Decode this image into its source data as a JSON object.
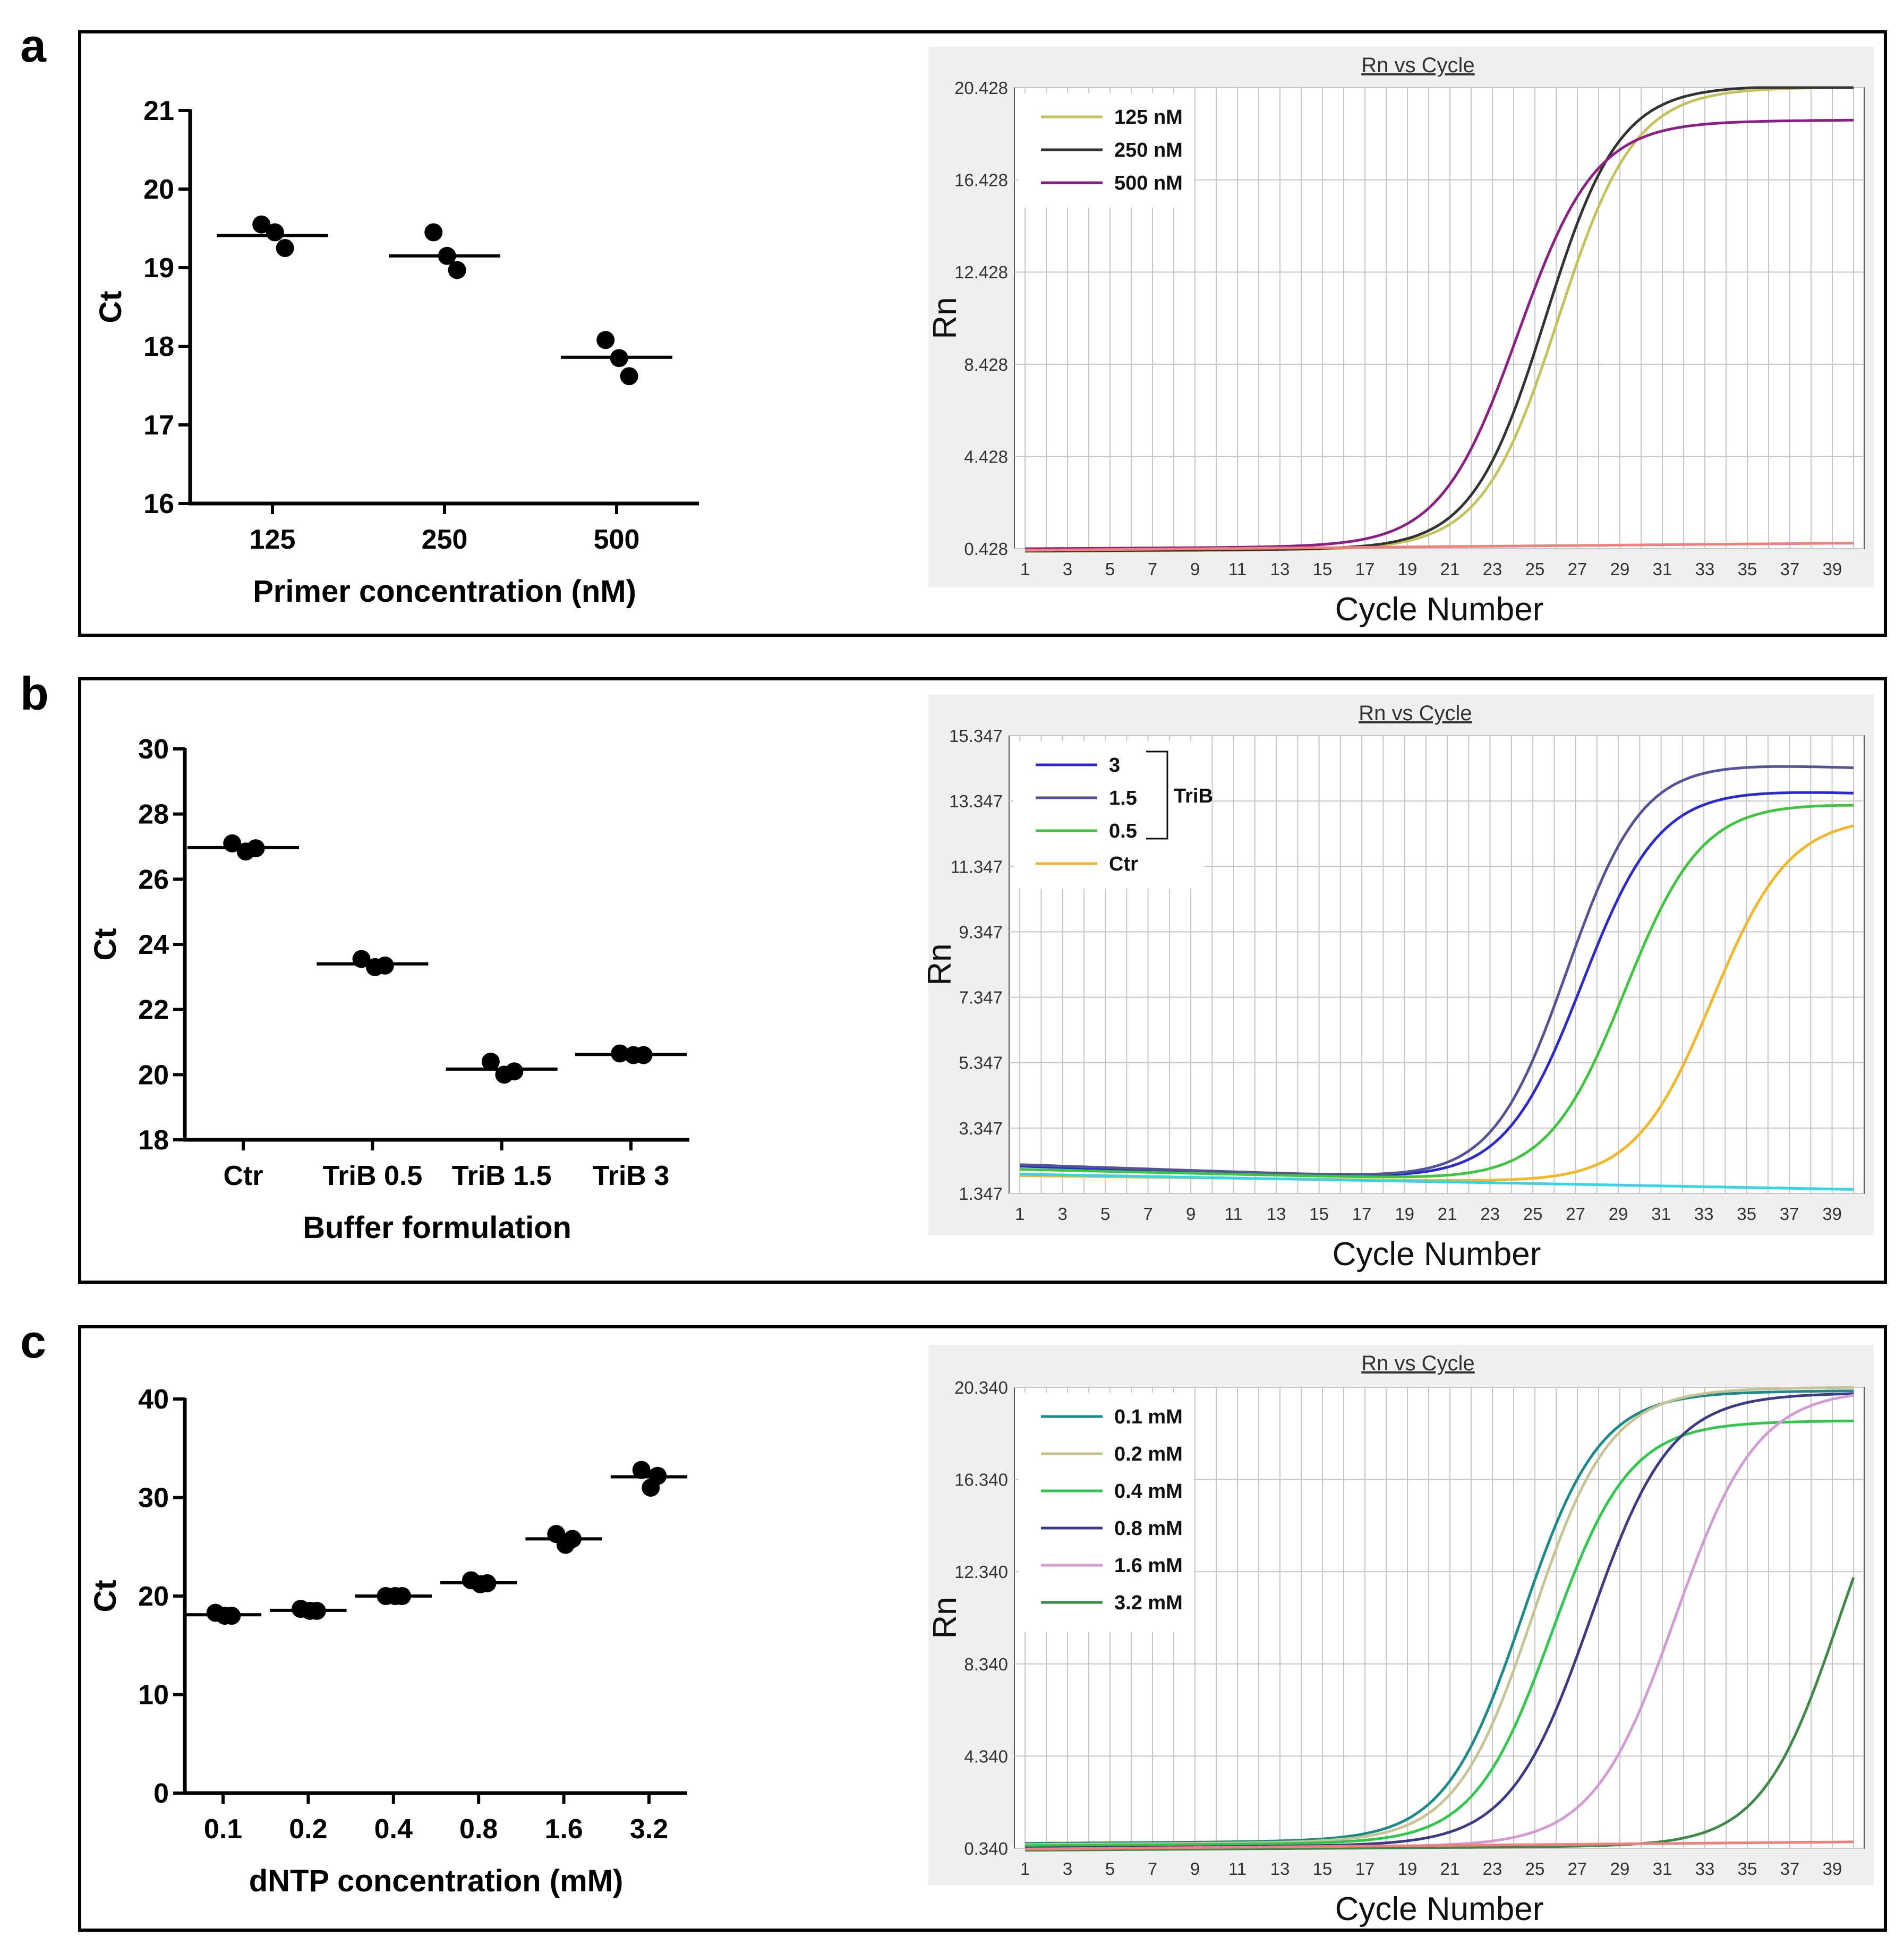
{
  "figure": {
    "panels": [
      {
        "letter": "a"
      },
      {
        "letter": "b"
      },
      {
        "letter": "c"
      }
    ]
  },
  "colors": {
    "frame": "#000000",
    "plotBg": "#ffffff",
    "chartBg": "#f0f0f0",
    "grid": "#c6c6c6",
    "pinkBaseline": "#f08080",
    "cyanBaseline": "#33d6e6"
  },
  "chart_data": [
    {
      "id": "a-scatter",
      "type": "scatter",
      "panel": "a",
      "title": "",
      "xlabel": "Primer concentration (nM)",
      "ylabel": "Ct",
      "categories": [
        "125",
        "250",
        "500"
      ],
      "ylim": [
        16,
        21
      ],
      "yticks": [
        16,
        17,
        18,
        19,
        20,
        21
      ],
      "points": [
        [
          19.55,
          19.45,
          19.25
        ],
        [
          19.45,
          19.15,
          18.97
        ],
        [
          18.08,
          17.85,
          17.62
        ]
      ],
      "means": [
        19.41,
        19.15,
        17.86
      ]
    },
    {
      "id": "a-amp",
      "type": "line",
      "panel": "a",
      "title": "Rn vs Cycle",
      "xlabel": "Cycle Number",
      "ylabel": "Rn",
      "xlim": [
        0.5,
        40.5
      ],
      "ylim": [
        0.428,
        20.428
      ],
      "xticks": [
        "1",
        "3",
        "5",
        "7",
        "9",
        "11",
        "13",
        "15",
        "17",
        "19",
        "21",
        "23",
        "25",
        "27",
        "29",
        "31",
        "33",
        "35",
        "37",
        "39"
      ],
      "yticks": [
        "0.428",
        "4.428",
        "8.428",
        "12.428",
        "16.428",
        "20.428"
      ],
      "series": [
        {
          "name": "125 nM",
          "color": "#c6c25a",
          "legend": true,
          "base": 0.3,
          "slope": 0.005,
          "plateau": 19.95,
          "mid": 26.1,
          "k": 0.56
        },
        {
          "name": "250 nM",
          "color": "#333333",
          "legend": true,
          "base": 0.32,
          "slope": 0.005,
          "plateau": 20.0,
          "mid": 25.5,
          "k": 0.58
        },
        {
          "name": "500 nM",
          "color": "#8b1f85",
          "legend": true,
          "base": 0.42,
          "slope": 0.005,
          "plateau": 18.4,
          "mid": 24.2,
          "k": 0.55
        },
        {
          "name": "no template",
          "color": "#f08080",
          "legend": false,
          "base": 0.35,
          "slope": 0.008,
          "plateau": 0,
          "mid": 100,
          "k": 0.5
        }
      ]
    },
    {
      "id": "b-scatter",
      "type": "scatter",
      "panel": "b",
      "title": "",
      "xlabel": "Buffer formulation",
      "ylabel": "Ct",
      "categories": [
        "Ctr",
        "TriB 0.5",
        "TriB 1.5",
        "TriB 3"
      ],
      "ylim": [
        18,
        30
      ],
      "yticks": [
        18,
        20,
        22,
        24,
        26,
        28,
        30
      ],
      "points": [
        [
          27.1,
          26.85,
          26.95
        ],
        [
          23.55,
          23.3,
          23.35
        ],
        [
          20.4,
          20.0,
          20.1
        ],
        [
          20.65,
          20.6,
          20.6
        ]
      ],
      "means": [
        26.97,
        23.4,
        20.17,
        20.62
      ]
    },
    {
      "id": "b-amp",
      "type": "line",
      "panel": "b",
      "title": "Rn vs Cycle",
      "xlabel": "Cycle Number",
      "ylabel": "Rn",
      "legend_bracket_label": "TriB",
      "xlim": [
        0.5,
        40.5
      ],
      "ylim": [
        1.347,
        15.347
      ],
      "xticks": [
        "1",
        "3",
        "5",
        "7",
        "9",
        "11",
        "13",
        "15",
        "17",
        "19",
        "21",
        "23",
        "25",
        "27",
        "29",
        "31",
        "33",
        "35",
        "37",
        "39"
      ],
      "yticks": [
        "1.347",
        "3.347",
        "5.347",
        "7.347",
        "9.347",
        "11.347",
        "13.347",
        "15.347"
      ],
      "series": [
        {
          "name": "3",
          "color": "#2a2ad0",
          "legend": true,
          "base": 2.2,
          "slope": -0.02,
          "plateau": 12.2,
          "mid": 27.3,
          "k": 0.55
        },
        {
          "name": "1.5",
          "color": "#535399",
          "legend": true,
          "base": 2.25,
          "slope": -0.022,
          "plateau": 13.0,
          "mid": 26.6,
          "k": 0.57
        },
        {
          "name": "0.5",
          "color": "#3cc63c",
          "legend": true,
          "base": 2.1,
          "slope": -0.015,
          "plateau": 11.75,
          "mid": 29.3,
          "k": 0.55
        },
        {
          "name": "Ctr",
          "color": "#f5b625",
          "legend": true,
          "base": 1.9,
          "slope": -0.008,
          "plateau": 11.3,
          "mid": 33.4,
          "k": 0.55
        },
        {
          "name": "no template",
          "color": "#33d6e6",
          "legend": false,
          "base": 1.95,
          "slope": -0.012,
          "plateau": 0,
          "mid": 100,
          "k": 0.5
        }
      ]
    },
    {
      "id": "c-scatter",
      "type": "scatter",
      "panel": "c",
      "title": "",
      "xlabel": "dNTP concentration (mM)",
      "ylabel": "Ct",
      "categories": [
        "0.1",
        "0.2",
        "0.4",
        "0.8",
        "1.6",
        "3.2"
      ],
      "ylim": [
        0,
        40
      ],
      "yticks": [
        0,
        10,
        20,
        30,
        40
      ],
      "points": [
        [
          18.3,
          18.0,
          18.0
        ],
        [
          18.7,
          18.5,
          18.5
        ],
        [
          20.0,
          20.0,
          20.0
        ],
        [
          21.6,
          21.2,
          21.3
        ],
        [
          26.3,
          25.2,
          25.8
        ],
        [
          32.8,
          31.0,
          32.2
        ]
      ],
      "means": [
        18.1,
        18.55,
        20.0,
        21.35,
        25.8,
        32.1
      ]
    },
    {
      "id": "c-amp",
      "type": "line",
      "panel": "c",
      "title": "Rn vs Cycle",
      "xlabel": "Cycle Number",
      "ylabel": "Rn",
      "xlim": [
        0.5,
        40.5
      ],
      "ylim": [
        0.34,
        20.34
      ],
      "xticks": [
        "1",
        "3",
        "5",
        "7",
        "9",
        "11",
        "13",
        "15",
        "17",
        "19",
        "21",
        "23",
        "25",
        "27",
        "29",
        "31",
        "33",
        "35",
        "37",
        "39"
      ],
      "yticks": [
        "0.340",
        "4.340",
        "8.340",
        "12.340",
        "16.340",
        "20.340"
      ],
      "series": [
        {
          "name": "0.1 mM",
          "color": "#1b8a8a",
          "legend": true,
          "base": 0.55,
          "slope": 0.006,
          "plateau": 19.4,
          "mid": 24.4,
          "k": 0.55
        },
        {
          "name": "0.2 mM",
          "color": "#c8c392",
          "legend": true,
          "base": 0.5,
          "slope": 0.006,
          "plateau": 19.6,
          "mid": 24.9,
          "k": 0.55
        },
        {
          "name": "0.4 mM",
          "color": "#2ec94a",
          "legend": true,
          "base": 0.45,
          "slope": 0.006,
          "plateau": 18.2,
          "mid": 25.8,
          "k": 0.55
        },
        {
          "name": "0.8 mM",
          "color": "#3a3a86",
          "legend": true,
          "base": 0.35,
          "slope": 0.006,
          "plateau": 19.5,
          "mid": 27.6,
          "k": 0.53
        },
        {
          "name": "1.6 mM",
          "color": "#d39ad3",
          "legend": true,
          "base": 0.3,
          "slope": 0.006,
          "plateau": 19.7,
          "mid": 31.6,
          "k": 0.52
        },
        {
          "name": "3.2 mM",
          "color": "#3c8a46",
          "legend": true,
          "base": 0.25,
          "slope": 0.006,
          "plateau": 19.5,
          "mid": 39.3,
          "k": 0.55
        },
        {
          "name": "no template",
          "color": "#f08080",
          "legend": false,
          "base": 0.3,
          "slope": 0.008,
          "plateau": 0,
          "mid": 100,
          "k": 0.5
        }
      ]
    }
  ]
}
